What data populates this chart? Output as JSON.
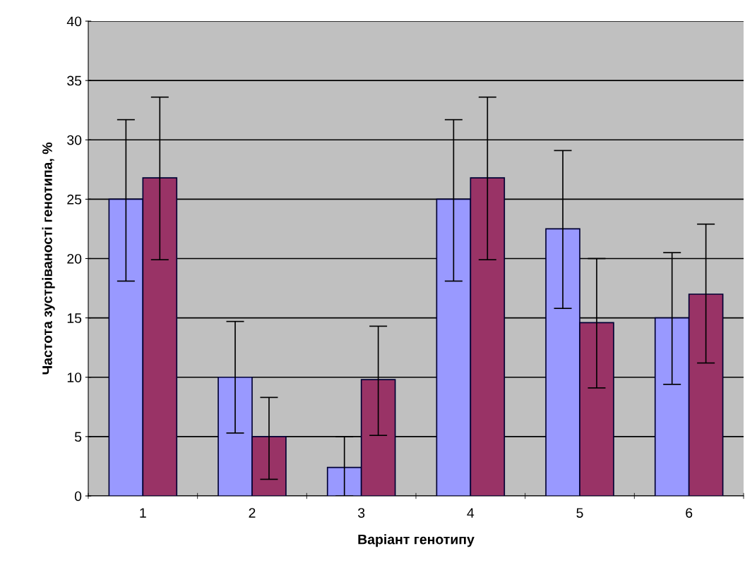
{
  "chart_data": {
    "type": "bar",
    "xlabel": "Варіант генотипу",
    "ylabel": "Частота зустріваності генотипа, %",
    "categories": [
      "1",
      "2",
      "3",
      "4",
      "5",
      "6"
    ],
    "series": [
      {
        "color": "#9999ff",
        "values": [
          25,
          10,
          2.4,
          25,
          22.5,
          15
        ],
        "errors": [
          [
            18.1,
            31.7
          ],
          [
            5.3,
            14.7
          ],
          [
            0,
            5
          ],
          [
            18.1,
            31.7
          ],
          [
            15.8,
            29.1
          ],
          [
            9.4,
            20.5
          ]
        ]
      },
      {
        "color": "#993366",
        "values": [
          26.8,
          5,
          9.8,
          26.8,
          14.6,
          17.0
        ],
        "errors": [
          [
            19.9,
            33.6
          ],
          [
            1.4,
            8.3
          ],
          [
            5.1,
            14.3
          ],
          [
            19.9,
            33.6
          ],
          [
            9.1,
            20.0
          ],
          [
            11.2,
            22.9
          ]
        ]
      }
    ],
    "ylim": [
      0,
      40
    ],
    "yticks": [
      0,
      5,
      10,
      15,
      20,
      25,
      30,
      35,
      40
    ],
    "grid": "y"
  }
}
